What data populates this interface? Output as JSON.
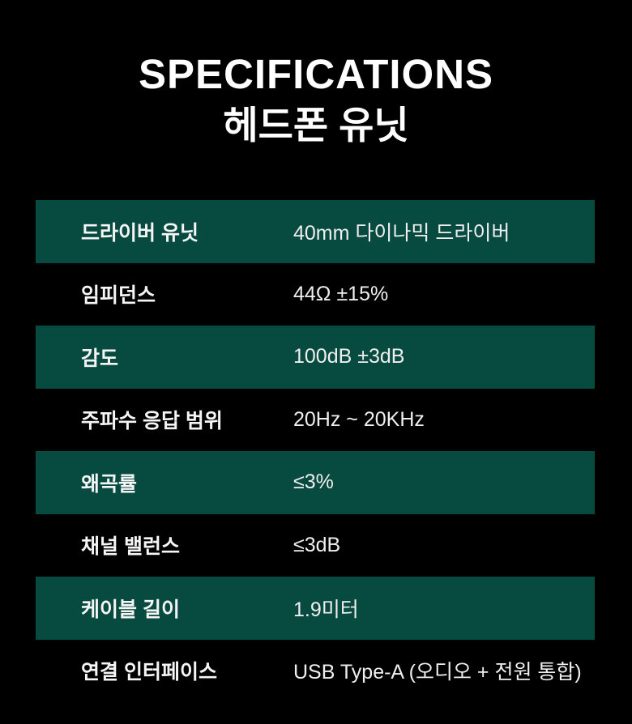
{
  "page": {
    "background_color": "#000000",
    "title": "SPECIFICATIONS",
    "subtitle": "헤드폰 유닛"
  },
  "colors": {
    "row_highlight": "#074a40",
    "title_text": "#ffffff",
    "row_text": "#f2f2f2"
  },
  "spec_table": {
    "rows": [
      {
        "label": "드라이버 유닛",
        "value": "40mm 다이나믹 드라이버",
        "highlighted": true
      },
      {
        "label": "임피던스",
        "value": "44Ω ±15%",
        "highlighted": false
      },
      {
        "label": "감도",
        "value": "100dB ±3dB",
        "highlighted": true
      },
      {
        "label": "주파수 응답 범위",
        "value": "20Hz ~ 20KHz",
        "highlighted": false
      },
      {
        "label": "왜곡률",
        "value": "≤3%",
        "highlighted": true
      },
      {
        "label": "채널 밸런스",
        "value": "≤3dB",
        "highlighted": false
      },
      {
        "label": "케이블 길이",
        "value": "1.9미터",
        "highlighted": true
      },
      {
        "label": "연결 인터페이스",
        "value": "USB Type-A (오디오 + 전원 통합)",
        "highlighted": false
      }
    ]
  }
}
